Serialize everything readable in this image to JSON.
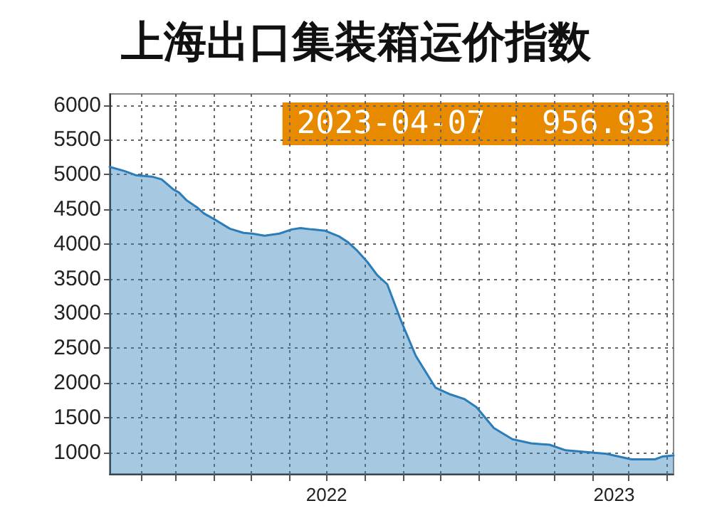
{
  "chart_data": {
    "type": "area",
    "title": "上海出口集装箱运价指数",
    "annotations": [
      "2023-04-07 : 956.93"
    ],
    "x": [
      "2022-01-07",
      "2022-01-19",
      "2022-01-28",
      "2022-02-10",
      "2022-02-18",
      "2022-02-27",
      "2022-03-04",
      "2022-03-10",
      "2022-03-19",
      "2022-03-24",
      "2022-04-03",
      "2022-04-14",
      "2022-04-25",
      "2022-05-02",
      "2022-05-12",
      "2022-05-24",
      "2022-06-03",
      "2022-06-10",
      "2022-06-19",
      "2022-06-30",
      "2022-07-11",
      "2022-07-18",
      "2022-07-26",
      "2022-08-03",
      "2022-08-11",
      "2022-08-19",
      "2022-08-30",
      "2022-09-11",
      "2022-09-27",
      "2022-10-08",
      "2022-10-20",
      "2022-10-30",
      "2022-11-13",
      "2022-11-28",
      "2022-12-13",
      "2022-12-28",
      "2023-01-10",
      "2023-01-30",
      "2023-02-12",
      "2023-03-04",
      "2023-03-23",
      "2023-03-29",
      "2023-04-07"
    ],
    "series": [
      {
        "color": "#2a7db8",
        "values": [
          5110,
          5050,
          4990,
          4970,
          4930,
          4790,
          4740,
          4630,
          4520,
          4440,
          4340,
          4220,
          4160,
          4150,
          4120,
          4150,
          4210,
          4230,
          4210,
          4190,
          4110,
          4030,
          3900,
          3740,
          3550,
          3420,
          2900,
          2390,
          1930,
          1840,
          1770,
          1650,
          1350,
          1190,
          1130,
          1110,
          1030,
          1000,
          980,
          900,
          900,
          940,
          956.93
        ]
      }
    ],
    "xlim": [
      "2022-01-07",
      "2023-04-07"
    ],
    "xticks": [
      {
        "value": "2022-02-01",
        "label": null
      },
      {
        "value": "2022-03-01",
        "label": null
      },
      {
        "value": "2022-04-01",
        "label": null
      },
      {
        "value": "2022-05-01",
        "label": null
      },
      {
        "value": "2022-06-01",
        "label": null
      },
      {
        "value": "2022-07-01",
        "label": null
      },
      {
        "value": "2022-08-01",
        "label": null
      },
      {
        "value": "2022-09-01",
        "label": null
      },
      {
        "value": "2022-10-01",
        "label": null
      },
      {
        "value": "2022-11-01",
        "label": null
      },
      {
        "value": "2022-12-01",
        "label": null
      },
      {
        "value": "2023-01-01",
        "label": null
      },
      {
        "value": "2023-02-01",
        "label": null
      },
      {
        "value": "2023-03-01",
        "label": null
      },
      {
        "value": "2023-04-01",
        "label": null
      },
      {
        "value": "2022-07-01",
        "label": "2022"
      },
      {
        "value": "2023-02-18",
        "label": "2023"
      }
    ],
    "ylim": [
      690,
      6160
    ],
    "yticks": [
      1000,
      1500,
      2000,
      2500,
      3000,
      3500,
      4000,
      4500,
      5000,
      5500,
      6000
    ],
    "grid": true,
    "marker": "none",
    "line_style": "solid"
  }
}
